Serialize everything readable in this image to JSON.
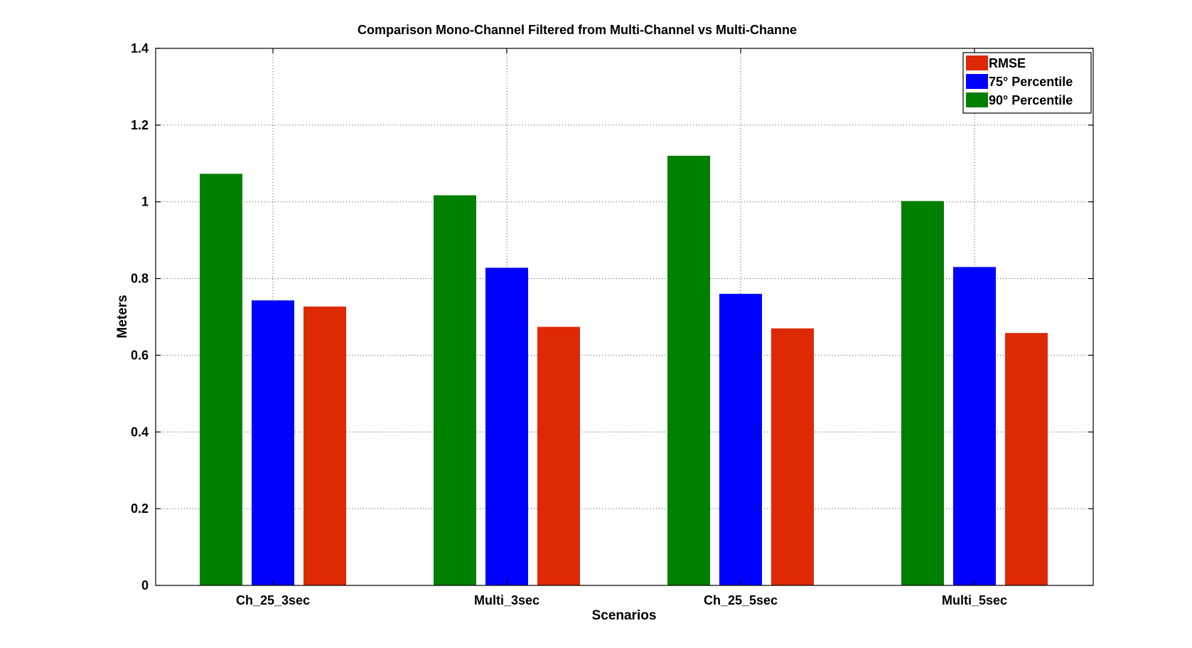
{
  "chart_data": {
    "type": "bar",
    "title": "Comparison Mono-Channel Filtered from Multi-Channel vs Multi-Channe",
    "xlabel": "Scenarios",
    "ylabel": "Meters",
    "categories": [
      "Ch_25_3sec",
      "Multi_3sec",
      "Ch_25_5sec",
      "Multi_5sec"
    ],
    "ylim": [
      0,
      1.4
    ],
    "yticks": [
      "0",
      "0.2",
      "0.4",
      "0.6",
      "0.8",
      "1",
      "1.2",
      "1.4"
    ],
    "grid": true,
    "legend_position": "top-right",
    "series": [
      {
        "name": "90° Percentile",
        "color": "#008000",
        "values": [
          1.073,
          1.017,
          1.12,
          1.002
        ]
      },
      {
        "name": "75° Percentile",
        "color": "#0000ff",
        "values": [
          0.743,
          0.828,
          0.76,
          0.83
        ]
      },
      {
        "name": "RMSE",
        "color": "#dd2a05",
        "values": [
          0.727,
          0.674,
          0.67,
          0.658
        ]
      }
    ],
    "legend_order": [
      "RMSE",
      "75° Percentile",
      "90° Percentile"
    ]
  }
}
